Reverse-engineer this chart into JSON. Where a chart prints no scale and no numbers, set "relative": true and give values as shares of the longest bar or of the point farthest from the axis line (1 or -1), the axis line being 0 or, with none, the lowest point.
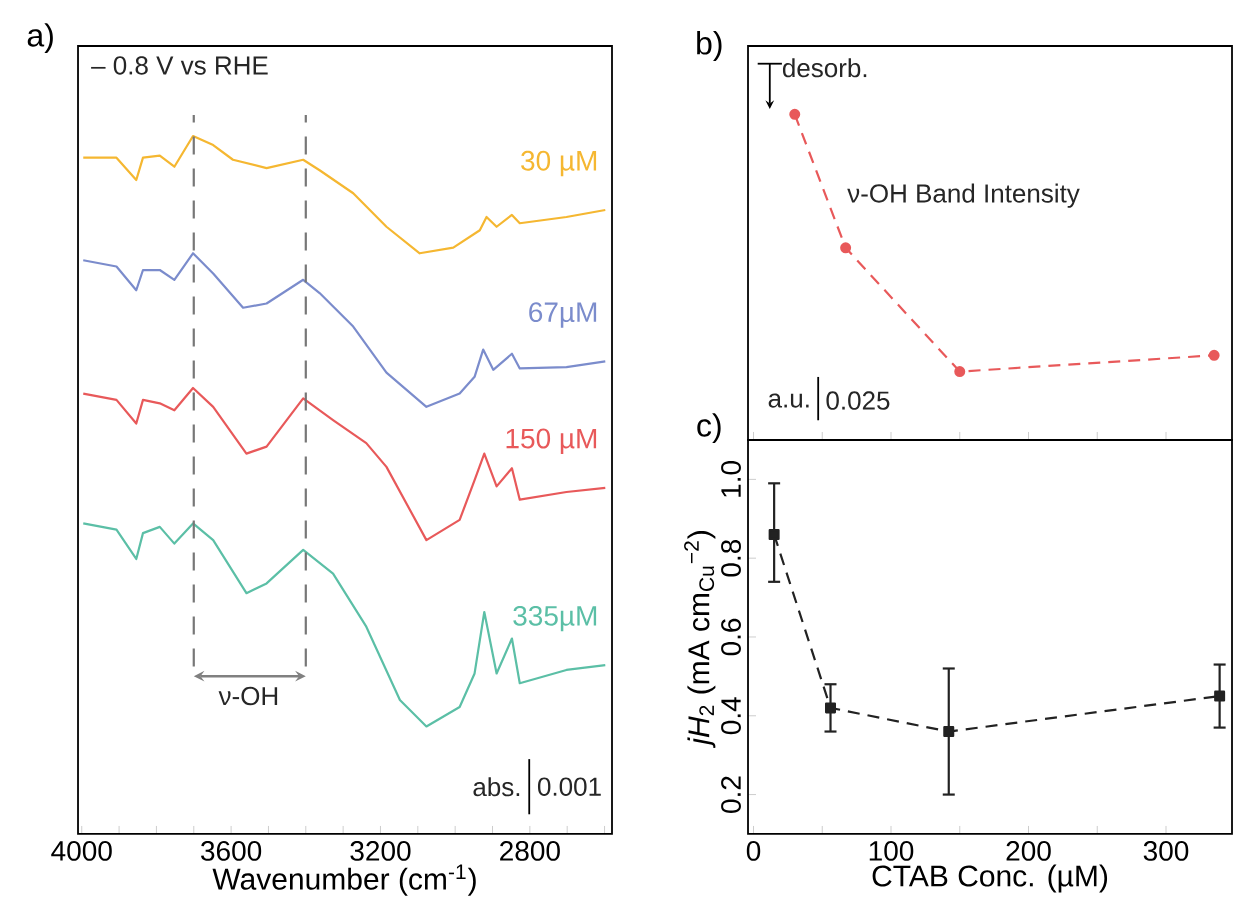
{
  "chart_data": [
    {
      "type": "line",
      "title": "a)",
      "xlabel": "Wavenumber (cm$^{-1}$)",
      "relative": true,
      "marker": "none",
      "line_style": "solid",
      "xlim": [
        4010,
        2580
      ],
      "xticks": [
        4000,
        {
          "value": 3900,
          "label": null
        },
        {
          "value": 3800,
          "label": null
        },
        {
          "value": 3700,
          "label": null
        },
        3600,
        {
          "value": 3500,
          "label": null
        },
        {
          "value": 3400,
          "label": null
        },
        {
          "value": 3300,
          "label": null
        },
        3200,
        {
          "value": 3100,
          "label": null
        },
        {
          "value": 3000,
          "label": null
        },
        {
          "value": 2900,
          "label": null
        },
        2800,
        {
          "value": 2700,
          "label": null
        },
        {
          "value": 2600,
          "label": null
        }
      ],
      "annotations": [
        "– 0.8 V vs RHE",
        "ν-OH",
        "abs.",
        "0.001"
      ],
      "ref_lines": [
        {
          "axis": "x",
          "value": 3700,
          "color": "#777777",
          "line_style": "dashed"
        },
        {
          "axis": "x",
          "value": 3400,
          "color": "#777777",
          "line_style": "dashed"
        }
      ],
      "series": [
        {
          "name": "30 µM",
          "color": "#f5b731",
          "x": [
            3996,
            3907,
            3854,
            3836,
            3791,
            3752,
            3702,
            3648,
            3595,
            3505,
            3407,
            3363,
            3273,
            3184,
            3095,
            3005,
            2934,
            2916,
            2889,
            2848,
            2827,
            2702,
            2598
          ],
          "values": [
            0.969,
            0.969,
            0.937,
            0.969,
            0.972,
            0.956,
            1,
            0.987,
            0.966,
            0.954,
            0.966,
            0.951,
            0.918,
            0.87,
            0.832,
            0.84,
            0.865,
            0.884,
            0.87,
            0.887,
            0.875,
            0.884,
            0.894
          ]
        },
        {
          "name": "67µM",
          "color": "#7b8ccc",
          "x": [
            3996,
            3907,
            3854,
            3836,
            3791,
            3752,
            3702,
            3648,
            3568,
            3505,
            3407,
            3363,
            3273,
            3184,
            3077,
            2988,
            2948,
            2925,
            2898,
            2848,
            2827,
            2702,
            2598
          ],
          "values": [
            0.822,
            0.813,
            0.779,
            0.808,
            0.808,
            0.794,
            0.832,
            0.803,
            0.754,
            0.76,
            0.794,
            0.775,
            0.727,
            0.661,
            0.612,
            0.631,
            0.655,
            0.694,
            0.665,
            0.688,
            0.667,
            0.669,
            0.677
          ]
        },
        {
          "name": "150 µM",
          "color": "#e8595a",
          "x": [
            3996,
            3907,
            3854,
            3836,
            3791,
            3752,
            3702,
            3648,
            3559,
            3505,
            3407,
            3327,
            3238,
            3184,
            3077,
            2988,
            2948,
            2922,
            2889,
            2848,
            2827,
            2702,
            2598
          ],
          "values": [
            0.631,
            0.622,
            0.588,
            0.622,
            0.617,
            0.607,
            0.639,
            0.612,
            0.545,
            0.555,
            0.624,
            0.593,
            0.56,
            0.526,
            0.421,
            0.45,
            0.507,
            0.545,
            0.498,
            0.524,
            0.479,
            0.49,
            0.496
          ]
        },
        {
          "name": "335µM",
          "color": "#5bbfa6",
          "x": [
            3996,
            3907,
            3854,
            3836,
            3791,
            3752,
            3702,
            3648,
            3559,
            3505,
            3407,
            3327,
            3238,
            3148,
            3077,
            2988,
            2948,
            2922,
            2889,
            2848,
            2827,
            2702,
            2598
          ],
          "values": [
            0.445,
            0.436,
            0.394,
            0.431,
            0.44,
            0.416,
            0.445,
            0.421,
            0.345,
            0.359,
            0.407,
            0.373,
            0.297,
            0.192,
            0.154,
            0.182,
            0.23,
            0.318,
            0.23,
            0.28,
            0.216,
            0.235,
            0.242
          ]
        }
      ]
    },
    {
      "type": "line",
      "title": "b)",
      "relative": true,
      "marker": "circle",
      "line_style": "dashed",
      "tick_labels": false,
      "xlim": [
        -4,
        348
      ],
      "xticks": [
        0,
        50,
        100,
        150,
        200,
        250,
        300
      ],
      "annotations": [
        "desorb.",
        "ν-OH Band Intensity",
        "a.u.",
        "0.025"
      ],
      "x": [
        30,
        67,
        150,
        335
      ],
      "series": [
        {
          "color": "#e8595a",
          "values": [
            1,
            0.59,
            0.21,
            0.26
          ]
        }
      ]
    },
    {
      "type": "line",
      "title": "c)",
      "xlabel": "CTAB Conc. (µM)",
      "ylabel": "*jH*$_{2}$ (mA cm$_{Cu}$$^{−2}$)",
      "marker": "square",
      "line_style": "dashed",
      "xlim": [
        -4,
        348
      ],
      "ylim": [
        0.1,
        1.1
      ],
      "xticks": [
        0,
        {
          "value": 50,
          "label": null
        },
        100,
        {
          "value": 150,
          "label": null
        },
        200,
        {
          "value": 250,
          "label": null
        },
        300
      ],
      "yticks": [
        0.2,
        0.4,
        0.6,
        0.8,
        {
          "value": 1,
          "label": "1.0"
        }
      ],
      "x": [
        15,
        56,
        142,
        339
      ],
      "series": [
        {
          "color": "#222222",
          "values": [
            0.86,
            0.42,
            0.36,
            0.45
          ],
          "errors": [
            [
              0.74,
              0.99
            ],
            [
              0.36,
              0.48
            ],
            [
              0.2,
              0.52
            ],
            [
              0.37,
              0.53
            ]
          ]
        }
      ]
    }
  ]
}
